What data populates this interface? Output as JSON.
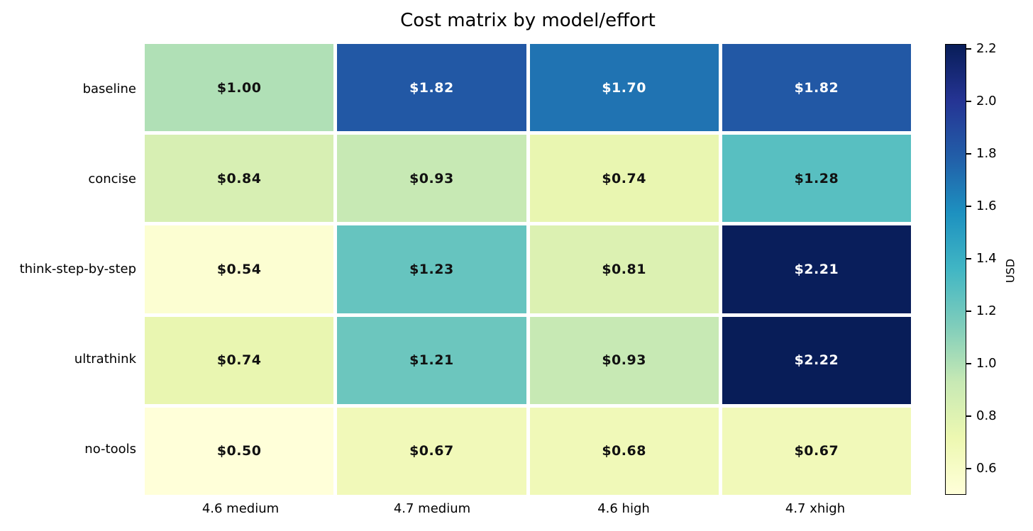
{
  "chart_data": {
    "type": "heatmap",
    "title": "Cost matrix by model/effort",
    "rows": [
      "baseline",
      "concise",
      "think-step-by-step",
      "ultrathink",
      "no-tools"
    ],
    "columns": [
      "4.6 medium",
      "4.7 medium",
      "4.6 high",
      "4.7 xhigh"
    ],
    "values": [
      [
        1.0,
        1.82,
        1.7,
        1.82
      ],
      [
        0.84,
        0.93,
        0.74,
        1.28
      ],
      [
        0.54,
        1.23,
        0.81,
        2.21
      ],
      [
        0.74,
        1.21,
        0.93,
        2.22
      ],
      [
        0.5,
        0.67,
        0.68,
        0.67
      ]
    ],
    "cell_labels": [
      [
        "$1.00",
        "$1.82",
        "$1.70",
        "$1.82"
      ],
      [
        "$0.84",
        "$0.93",
        "$0.74",
        "$1.28"
      ],
      [
        "$0.54",
        "$1.23",
        "$0.81",
        "$2.21"
      ],
      [
        "$0.74",
        "$1.21",
        "$0.93",
        "$2.22"
      ],
      [
        "$0.50",
        "$0.67",
        "$0.68",
        "$0.67"
      ]
    ],
    "colorbar": {
      "label": "USD",
      "vmin": 0.5,
      "vmax": 2.22,
      "tick_labels": [
        "0.6",
        "0.8",
        "1.0",
        "1.2",
        "1.4",
        "1.6",
        "1.8",
        "2.0",
        "2.2"
      ],
      "tick_values": [
        0.6,
        0.8,
        1.0,
        1.2,
        1.4,
        1.6,
        1.8,
        2.0,
        2.2
      ]
    },
    "colormap": {
      "name": "YlGnBu",
      "stops": [
        {
          "t": 0.0,
          "color": "#ffffd9"
        },
        {
          "t": 0.125,
          "color": "#edf8b1"
        },
        {
          "t": 0.25,
          "color": "#c7e9b4"
        },
        {
          "t": 0.375,
          "color": "#7fcdbb"
        },
        {
          "t": 0.5,
          "color": "#41b6c4"
        },
        {
          "t": 0.625,
          "color": "#1d91c0"
        },
        {
          "t": 0.75,
          "color": "#225ea8"
        },
        {
          "t": 0.875,
          "color": "#253494"
        },
        {
          "t": 1.0,
          "color": "#081d58"
        }
      ]
    },
    "grid": false,
    "legend_position": "right-colorbar",
    "xlabel": "",
    "ylabel": "",
    "annotation_text_colors": {
      "dark": "#111111",
      "light": "#ffffff"
    }
  },
  "colors": {
    "background": "#ffffff",
    "axis_text": "#000000",
    "colorbar_border": "#000000"
  }
}
